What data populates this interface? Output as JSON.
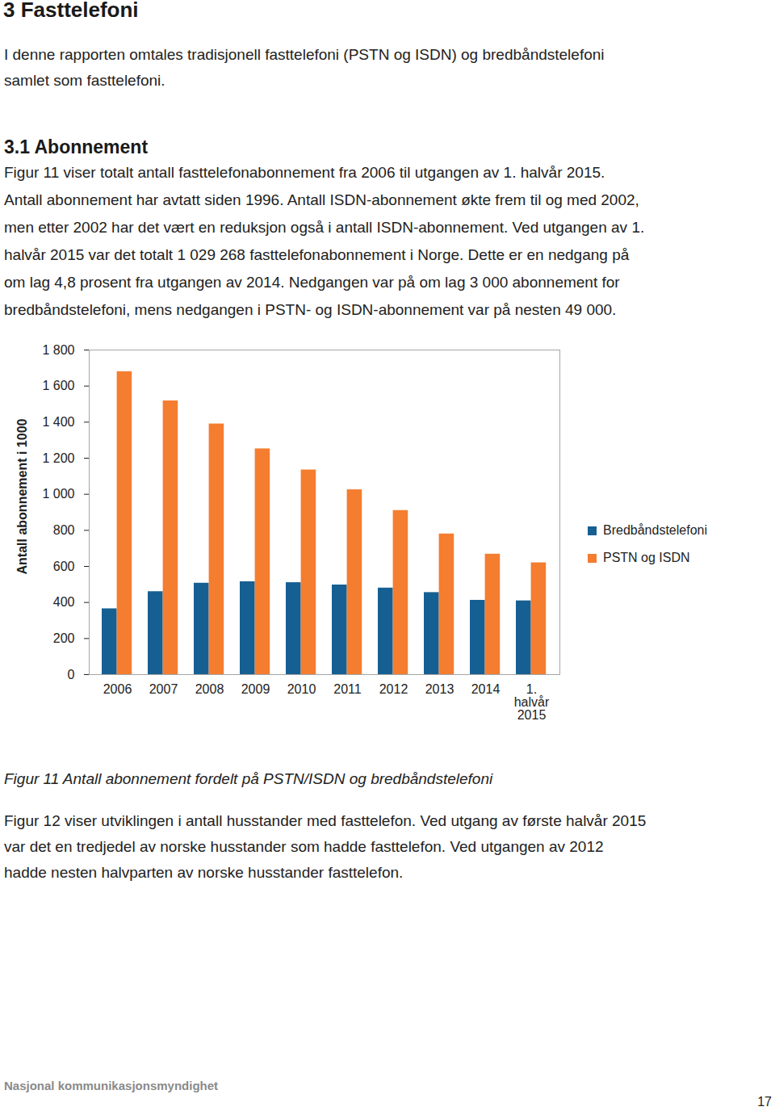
{
  "document": {
    "heading": "3 Fasttelefoni",
    "intro": [
      "I denne rapporten omtales tradisjonell fasttelefoni (PSTN og ISDN) og bredbåndstelefoni",
      "samlet som fasttelefoni."
    ],
    "section_heading": "3.1 Abonnement",
    "section_text": [
      "Figur 11 viser totalt antall fasttelefonabonnement fra 2006 til utgangen av 1. halvår 2015.",
      "Antall abonnement har avtatt siden 1996. Antall ISDN-abonnement økte frem til og med 2002,",
      "men etter 2002 har det vært en reduksjon også i antall ISDN-abonnement. Ved utgangen av 1.",
      "halvår 2015 var det totalt 1 029 268 fasttelefonabonnement i Norge. Dette er en nedgang på",
      "om lag 4,8 prosent fra utgangen av 2014. Nedgangen var på om lag 3 000 abonnement for",
      "bredbåndstelefoni, mens nedgangen i PSTN- og ISDN-abonnement var på nesten 49 000."
    ],
    "caption": "Figur 11 Antall abonnement fordelt på PSTN/ISDN og bredbåndstelefoni",
    "after_text": [
      "Figur 12 viser utviklingen i antall husstander med fasttelefon. Ved utgang av første halvår 2015",
      "var det en tredjedel av norske husstander som hadde fasttelefon. Ved utgangen av 2012",
      "hadde nesten halvparten av norske husstander fasttelefon."
    ],
    "footer": "Nasjonal kommunikasjonsmyndighet",
    "page_number": "17"
  },
  "chart_data": {
    "type": "bar",
    "y_label": "Antall abonnement i 1000",
    "categories": [
      "2006",
      "2007",
      "2008",
      "2009",
      "2010",
      "2011",
      "2012",
      "2013",
      "2014",
      "1. halvår 2015"
    ],
    "series": [
      {
        "name": "Bredbåndstelefoni",
        "color": "#165f92",
        "values": [
          365,
          460,
          507,
          515,
          510,
          497,
          480,
          455,
          412,
          409
        ]
      },
      {
        "name": "PSTN og ISDN",
        "color": "#f47d30",
        "values": [
          1680,
          1518,
          1390,
          1252,
          1135,
          1025,
          910,
          780,
          668,
          620
        ]
      }
    ],
    "ylim": [
      0,
      1800
    ],
    "yticks": [
      0,
      200,
      400,
      600,
      800,
      {
        "value": 1000,
        "label": "1 000"
      },
      {
        "value": 1200,
        "label": "1 200"
      },
      {
        "value": 1400,
        "label": "1 400"
      },
      {
        "value": 1600,
        "label": "1 600"
      },
      {
        "value": 1800,
        "label": "1 800"
      }
    ],
    "grid": false,
    "legend": "right"
  }
}
